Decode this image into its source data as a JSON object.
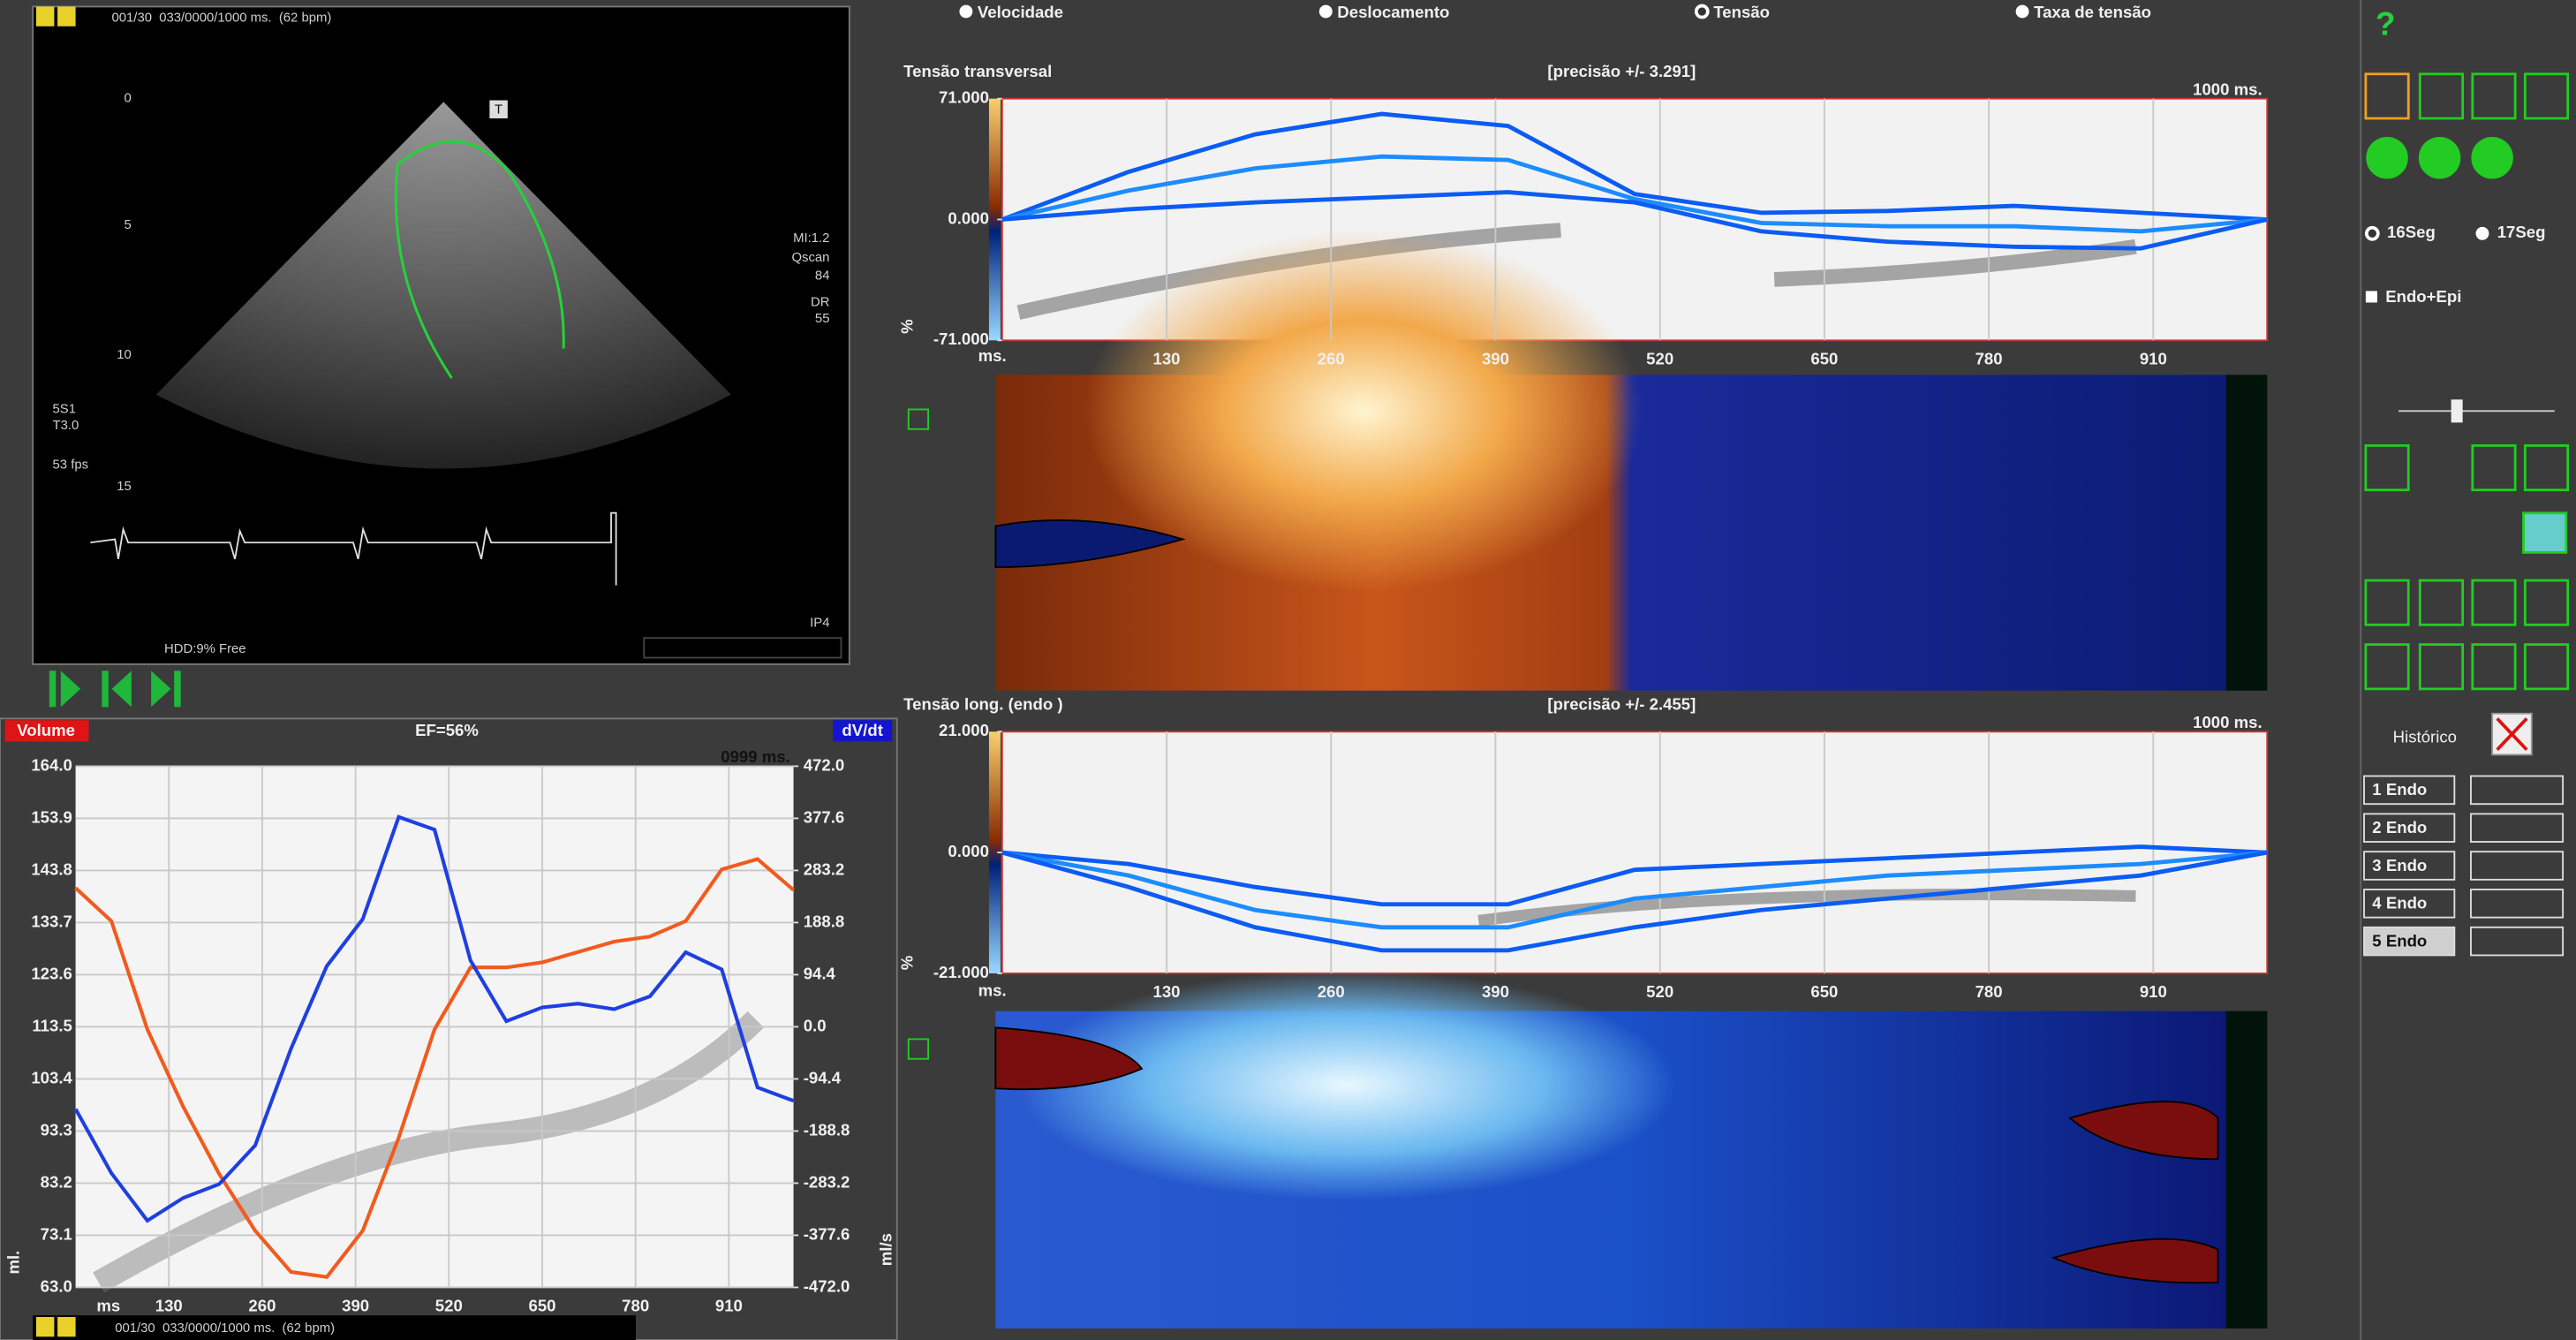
{
  "echo": {
    "header": "001/30  033/0000/1000 ms.  (62 bpm)",
    "depth_labels": [
      "0",
      "5",
      "10",
      "15"
    ],
    "probe": [
      "5S1",
      "T3.0",
      "53 fps"
    ],
    "settings": [
      "MI:1.2",
      "Qscan",
      "84",
      "DR",
      "55"
    ],
    "marker": "T",
    "status": "HDD:9% Free",
    "preset": "IP4"
  },
  "modes": [
    {
      "label": "Velocidade",
      "selected": false
    },
    {
      "label": "Deslocamento",
      "selected": false
    },
    {
      "label": "Tensão",
      "selected": true
    },
    {
      "label": "Taxa de tensão",
      "selected": false
    }
  ],
  "side": {
    "help": "?",
    "segments": [
      {
        "label": "16Seg",
        "selected": true
      },
      {
        "label": "17Seg",
        "selected": false
      }
    ],
    "endo_epi": "Endo+Epi",
    "history": "Histórico",
    "endo": [
      {
        "label": "1 Endo",
        "selected": false
      },
      {
        "label": "2 Endo",
        "selected": false
      },
      {
        "label": "3 Endo",
        "selected": false
      },
      {
        "label": "4 Endo",
        "selected": false
      },
      {
        "label": "5 Endo",
        "selected": true
      }
    ]
  },
  "footer": "001/30  033/0000/1000 ms.  (62 bpm)",
  "chart_data": [
    {
      "type": "line",
      "title": "Tensão transversal",
      "subtitle": "[precisão +/- 3.291]",
      "time_label": "1000 ms.",
      "xlabel": "ms.",
      "ylabel": "%",
      "grid": "x",
      "x": [
        0,
        100,
        200,
        300,
        400,
        500,
        600,
        700,
        800,
        900,
        1000
      ],
      "xlim": [
        0,
        1000
      ],
      "xticks": [
        130,
        260,
        390,
        520,
        650,
        780,
        910
      ],
      "ylim": [
        -71,
        71
      ],
      "yticks": [
        {
          "value": 71,
          "label": "71.000"
        },
        {
          "value": 0,
          "label": "0.000"
        },
        {
          "value": -71,
          "label": "-71.000"
        }
      ],
      "series": [
        {
          "color": "#0b5cf2",
          "values": [
            0,
            28,
            50,
            62,
            55,
            15,
            4,
            5,
            8,
            4,
            0
          ]
        },
        {
          "color": "#1c8cff",
          "values": [
            0,
            17,
            30,
            37,
            35,
            12,
            -2,
            -4,
            -4,
            -7,
            0
          ]
        },
        {
          "color": "#0b5cf2",
          "values": [
            0,
            6,
            10,
            13,
            16,
            10,
            -7,
            -13,
            -16,
            -17,
            0
          ]
        }
      ]
    },
    {
      "type": "line",
      "title": "Tensão long. (endo )",
      "subtitle": "[precisão +/- 2.455]",
      "time_label": "1000 ms.",
      "xlabel": "ms.",
      "ylabel": "%",
      "grid": "x",
      "x": [
        0,
        100,
        200,
        300,
        400,
        500,
        600,
        700,
        800,
        900,
        1000
      ],
      "xlim": [
        0,
        1000
      ],
      "xticks": [
        130,
        260,
        390,
        520,
        650,
        780,
        910
      ],
      "ylim": [
        -21,
        21
      ],
      "yticks": [
        {
          "value": 21,
          "label": "21.000"
        },
        {
          "value": 0,
          "label": "0.000"
        },
        {
          "value": -21,
          "label": "-21.000"
        }
      ],
      "series": [
        {
          "color": "#0b5cf2",
          "values": [
            0,
            -2,
            -6,
            -9,
            -9,
            -3,
            -2,
            -1,
            0,
            1,
            0
          ]
        },
        {
          "color": "#1c8cff",
          "values": [
            0,
            -4,
            -10,
            -13,
            -13,
            -8,
            -6,
            -4,
            -3,
            -2,
            0
          ]
        },
        {
          "color": "#0b5cf2",
          "values": [
            0,
            -6,
            -13,
            -17,
            -17,
            -13,
            -10,
            -8,
            -6,
            -4,
            0
          ]
        }
      ]
    },
    {
      "type": "line",
      "title": "EF=56%",
      "time_label": "0999 ms.",
      "xlabel": "ms",
      "ylabel": "ml.",
      "y2label": "ml/s",
      "grid": "both",
      "x": [
        0,
        50,
        100,
        150,
        200,
        250,
        300,
        350,
        400,
        450,
        500,
        550,
        600,
        650,
        700,
        750,
        800,
        850,
        900,
        950,
        1000
      ],
      "xlim": [
        0,
        1000
      ],
      "xticks": [
        130,
        260,
        390,
        520,
        650,
        780,
        910
      ],
      "ylim": [
        63,
        164
      ],
      "yticks": [
        {
          "value": 164,
          "label": "164.0"
        },
        153.9,
        143.8,
        133.7,
        123.6,
        113.5,
        103.4,
        93.3,
        83.2,
        73.1,
        {
          "value": 63,
          "label": "63.0"
        }
      ],
      "y2lim": [
        -472,
        472
      ],
      "y2ticks": [
        {
          "value": 472,
          "label": "472.0"
        },
        377.6,
        283.2,
        188.8,
        94.4,
        {
          "value": 0,
          "label": "0.0"
        },
        -94.4,
        -188.8,
        -283.2,
        -377.6,
        {
          "value": -472,
          "label": "-472.0"
        }
      ],
      "series": [
        {
          "name": "Volume",
          "color": "#f25a1e",
          "values": [
            140.4,
            134,
            113,
            98,
            85,
            74,
            66,
            65,
            74,
            92,
            113,
            125,
            125,
            126,
            128,
            130,
            131,
            134,
            144,
            146,
            140
          ]
        },
        {
          "name": "dV/dt",
          "color": "#1f3fe0",
          "axis": "y2",
          "values": [
            -149,
            -265,
            -351,
            -310,
            -285,
            -215,
            -40,
            110,
            195,
            380,
            357,
            120,
            10,
            35,
            42,
            32,
            55,
            135,
            104,
            -110,
            -134
          ]
        }
      ]
    }
  ]
}
